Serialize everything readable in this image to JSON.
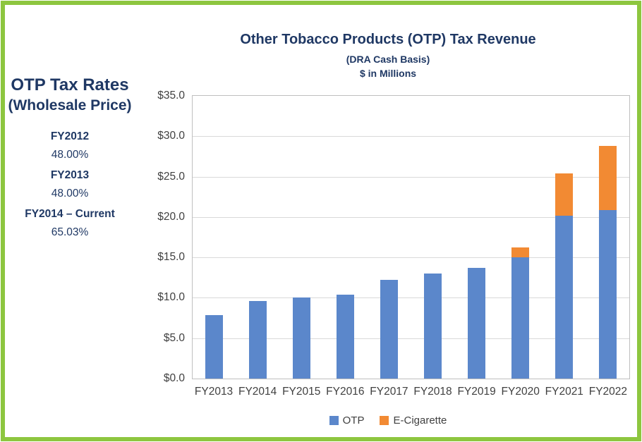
{
  "colors": {
    "border_green": "#8DC63F",
    "navy_text": "#1F3864",
    "otp_blue": "#5B87CB",
    "ecig_orange": "#F28A33",
    "axis_text": "#404040",
    "gridline": "#D9D9D9",
    "plot_border": "#BFBFBF"
  },
  "sidebar": {
    "title_line1": "OTP Tax Rates",
    "title_line2": "(Wholesale Price)",
    "rates": [
      {
        "period": "FY2012",
        "rate": "48.00%"
      },
      {
        "period": "FY2013",
        "rate": "48.00%"
      },
      {
        "period": "FY2014 – Current",
        "rate": "65.03%"
      }
    ]
  },
  "chart_data": {
    "type": "bar",
    "stacked": true,
    "title": "Other Tobacco Products (OTP) Tax Revenue",
    "subtitle1": "(DRA Cash Basis)",
    "subtitle2": "$ in Millions",
    "categories": [
      "FY2013",
      "FY2014",
      "FY2015",
      "FY2016",
      "FY2017",
      "FY2018",
      "FY2019",
      "FY2020",
      "FY2021",
      "FY2022"
    ],
    "series": [
      {
        "name": "OTP",
        "color": "#5B87CB",
        "values": [
          7.9,
          9.6,
          10.0,
          10.4,
          12.2,
          13.0,
          13.7,
          15.0,
          20.2,
          20.9
        ]
      },
      {
        "name": "E-Cigarette",
        "color": "#F28A33",
        "values": [
          0,
          0,
          0,
          0,
          0,
          0,
          0,
          1.2,
          5.2,
          7.9
        ]
      }
    ],
    "xlabel": "",
    "ylabel": "",
    "ylim": [
      0,
      35
    ],
    "ytick_step": 5,
    "ytick_prefix": "$",
    "ytick_decimals": 1,
    "grid": true,
    "legend_position": "bottom"
  }
}
